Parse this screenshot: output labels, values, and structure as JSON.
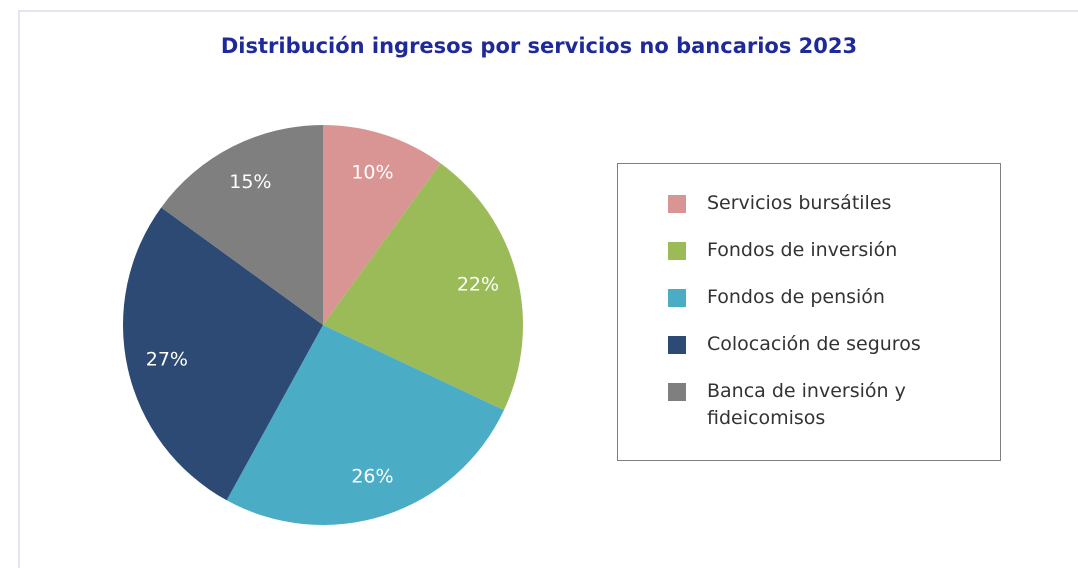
{
  "chart_data": {
    "type": "pie",
    "title": "Distribución ingresos por servicios no bancarios 2023",
    "categories": [
      "Servicios bursátiles",
      "Fondos de inversión",
      "Fondos de pensión",
      "Colocación de seguros",
      "Banca de inversión y fideicomisos"
    ],
    "values": [
      10,
      22,
      26,
      27,
      15
    ],
    "value_labels": [
      "10%",
      "22%",
      "26%",
      "27%",
      "15%"
    ],
    "colors": [
      "#d99594",
      "#9bbb59",
      "#4bacc6",
      "#2c4a74",
      "#7f7f7f"
    ],
    "legend": "right"
  }
}
